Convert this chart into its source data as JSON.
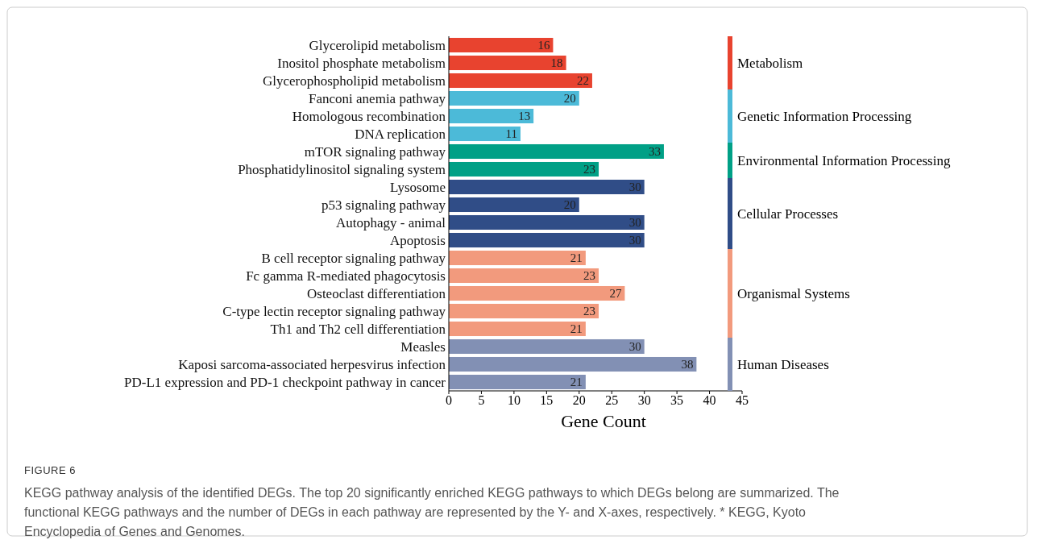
{
  "chart_data": {
    "type": "bar",
    "orientation": "horizontal",
    "xlabel": "Gene Count",
    "categories": [
      "Glycerolipid metabolism",
      "Inositol phosphate metabolism",
      "Glycerophospholipid metabolism",
      "Fanconi anemia pathway",
      "Homologous recombination",
      "DNA replication",
      "mTOR signaling pathway",
      "Phosphatidylinositol signaling system",
      "Lysosome",
      "p53 signaling pathway",
      "Autophagy - animal",
      "Apoptosis",
      "B cell receptor signaling pathway",
      "Fc gamma R-mediated phagocytosis",
      "Osteoclast differentiation",
      "C-type lectin receptor signaling pathway",
      "Th1 and Th2 cell differentiation",
      "Measles",
      "Kaposi sarcoma-associated herpesvirus infection",
      "PD-L1 expression and PD-1 checkpoint pathway in cancer"
    ],
    "values": [
      16,
      18,
      22,
      20,
      13,
      11,
      33,
      23,
      30,
      20,
      30,
      30,
      21,
      23,
      27,
      23,
      21,
      30,
      38,
      21
    ],
    "colors": [
      "#e8432f",
      "#e8432f",
      "#e8432f",
      "#4cbad8",
      "#4cbad8",
      "#4cbad8",
      "#00a086",
      "#00a086",
      "#304d87",
      "#304d87",
      "#304d87",
      "#304d87",
      "#f29a7d",
      "#f29a7d",
      "#f29a7d",
      "#f29a7d",
      "#f29a7d",
      "#8290b4",
      "#8290b4",
      "#8290b4"
    ],
    "xlim": [
      0,
      45
    ],
    "xticks": [
      0,
      5,
      10,
      15,
      20,
      25,
      30,
      35,
      40,
      45
    ],
    "data_labels": true,
    "grid": false,
    "annotations": [
      "Metabolism",
      "Genetic Information Processing",
      "Environmental Information Processing",
      "Cellular Processes",
      "Organismal Systems",
      "Human Diseases",
      "FIGURE 6",
      "KEGG pathway analysis of the identified DEGs. The top 20 significantly enriched KEGG pathways to which DEGs belong are summarized. The functional KEGG pathways and the number of DEGs in each pathway are represented by the Y- and X-axes, respectively. * KEGG, Kyoto Encyclopedia of Genes and Genomes."
    ]
  }
}
